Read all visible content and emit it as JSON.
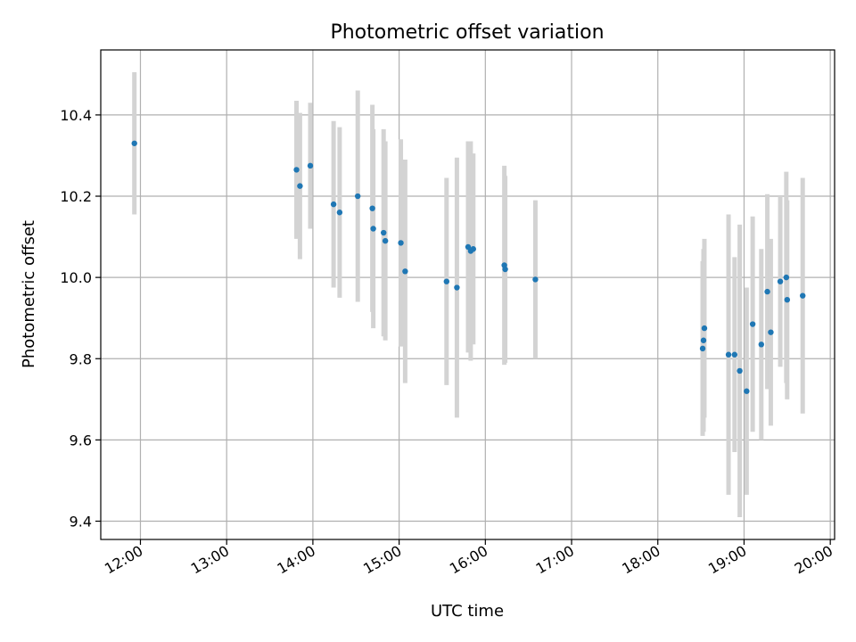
{
  "chart_data": {
    "type": "scatter",
    "title": "Photometric offset variation",
    "xlabel": "UTC time",
    "ylabel": "Photometric offset",
    "x_unit": "hours UTC",
    "xlim": [
      11.54,
      20.05
    ],
    "ylim": [
      9.355,
      10.56
    ],
    "x_ticks": [
      {
        "value": 12,
        "label": "12:00"
      },
      {
        "value": 13,
        "label": "13:00"
      },
      {
        "value": 14,
        "label": "14:00"
      },
      {
        "value": 15,
        "label": "15:00"
      },
      {
        "value": 16,
        "label": "16:00"
      },
      {
        "value": 17,
        "label": "17:00"
      },
      {
        "value": 18,
        "label": "18:00"
      },
      {
        "value": 19,
        "label": "19:00"
      },
      {
        "value": 20,
        "label": "20:00"
      }
    ],
    "y_ticks": [
      {
        "value": 9.4,
        "label": "9.4"
      },
      {
        "value": 9.6,
        "label": "9.6"
      },
      {
        "value": 9.8,
        "label": "9.8"
      },
      {
        "value": 10.0,
        "label": "10.0"
      },
      {
        "value": 10.2,
        "label": "10.2"
      },
      {
        "value": 10.4,
        "label": "10.4"
      }
    ],
    "grid": true,
    "marker_color": "#1f77b4",
    "errorbar_color": "#d3d3d3",
    "points": [
      {
        "x": 11.93,
        "y": 10.33,
        "err": 0.175
      },
      {
        "x": 13.81,
        "y": 10.265,
        "err": 0.17
      },
      {
        "x": 13.85,
        "y": 10.225,
        "err": 0.18
      },
      {
        "x": 13.97,
        "y": 10.275,
        "err": 0.155
      },
      {
        "x": 14.24,
        "y": 10.18,
        "err": 0.205
      },
      {
        "x": 14.31,
        "y": 10.16,
        "err": 0.21
      },
      {
        "x": 14.52,
        "y": 10.2,
        "err": 0.26
      },
      {
        "x": 14.69,
        "y": 10.17,
        "err": 0.255
      },
      {
        "x": 14.7,
        "y": 10.12,
        "err": 0.245
      },
      {
        "x": 14.82,
        "y": 10.11,
        "err": 0.255
      },
      {
        "x": 14.84,
        "y": 10.09,
        "err": 0.245
      },
      {
        "x": 15.02,
        "y": 10.085,
        "err": 0.255
      },
      {
        "x": 15.07,
        "y": 10.015,
        "err": 0.275
      },
      {
        "x": 15.55,
        "y": 9.99,
        "err": 0.255
      },
      {
        "x": 15.67,
        "y": 9.975,
        "err": 0.32
      },
      {
        "x": 15.8,
        "y": 10.075,
        "err": 0.26
      },
      {
        "x": 15.83,
        "y": 10.065,
        "err": 0.27
      },
      {
        "x": 15.86,
        "y": 10.07,
        "err": 0.235
      },
      {
        "x": 16.22,
        "y": 10.03,
        "err": 0.245
      },
      {
        "x": 16.23,
        "y": 10.02,
        "err": 0.23
      },
      {
        "x": 16.58,
        "y": 9.995,
        "err": 0.195
      },
      {
        "x": 18.52,
        "y": 9.825,
        "err": 0.215
      },
      {
        "x": 18.53,
        "y": 9.845,
        "err": 0.225
      },
      {
        "x": 18.54,
        "y": 9.875,
        "err": 0.22
      },
      {
        "x": 18.82,
        "y": 9.81,
        "err": 0.345
      },
      {
        "x": 18.89,
        "y": 9.81,
        "err": 0.24
      },
      {
        "x": 18.95,
        "y": 9.77,
        "err": 0.36
      },
      {
        "x": 19.03,
        "y": 9.72,
        "err": 0.255
      },
      {
        "x": 19.1,
        "y": 9.885,
        "err": 0.265
      },
      {
        "x": 19.2,
        "y": 9.835,
        "err": 0.235
      },
      {
        "x": 19.27,
        "y": 9.965,
        "err": 0.24
      },
      {
        "x": 19.31,
        "y": 9.865,
        "err": 0.23
      },
      {
        "x": 19.42,
        "y": 9.99,
        "err": 0.21
      },
      {
        "x": 19.49,
        "y": 10.0,
        "err": 0.26
      },
      {
        "x": 19.5,
        "y": 9.945,
        "err": 0.245
      },
      {
        "x": 19.68,
        "y": 9.955,
        "err": 0.29
      }
    ]
  }
}
